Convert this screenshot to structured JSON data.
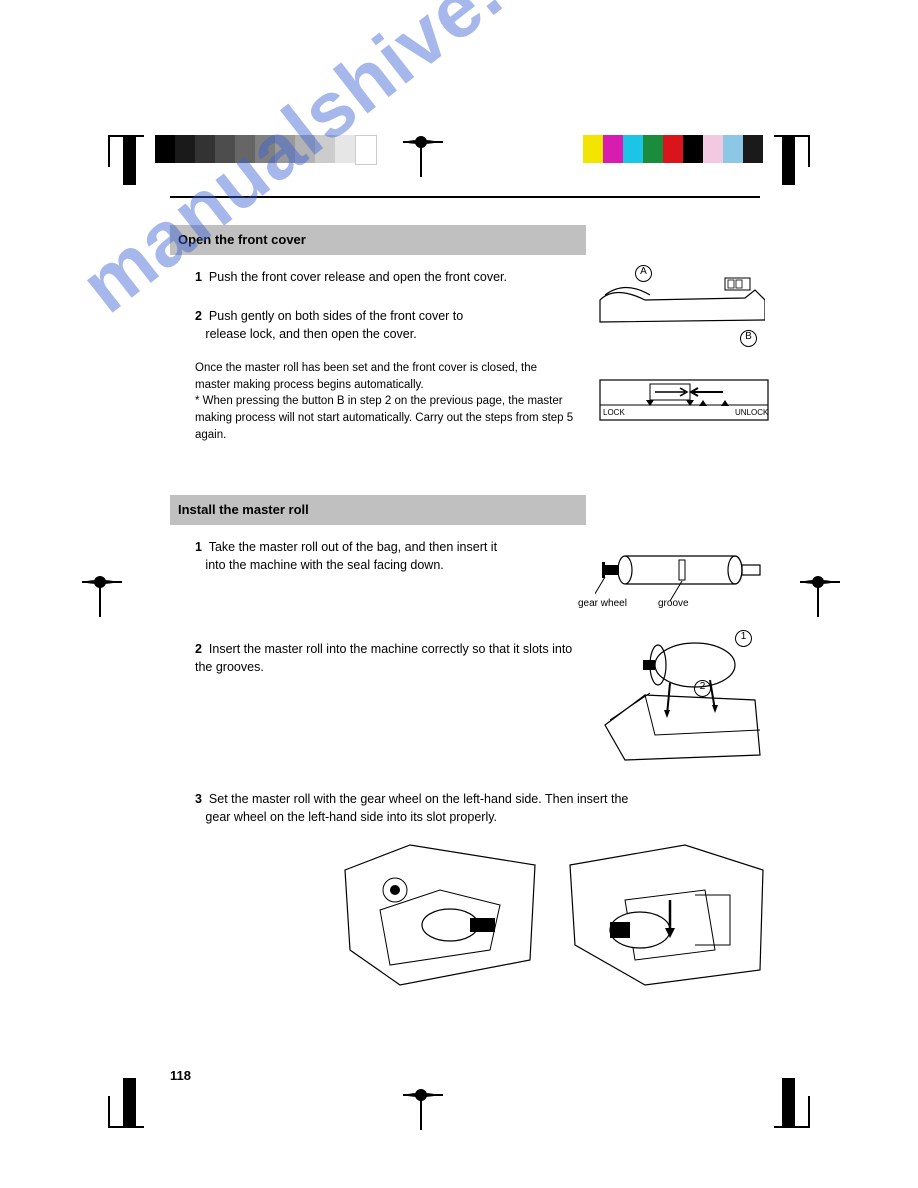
{
  "section1": {
    "title": "Open the front cover"
  },
  "step1": {
    "num": "1",
    "text": "Push the front cover release and open the front cover."
  },
  "step2": {
    "num": "2",
    "lines": [
      "Push gently on both sides of the front cover to",
      "release lock, and then open the cover."
    ],
    "note_lines": [
      "Once the master roll has been set and the front cover is closed, the",
      "master making process begins automatically.",
      "* When pressing the button B in step 2 on the previous page, the master",
      "making process will not start automatically. Carry out the steps from step 5 again."
    ]
  },
  "section2": {
    "title": "Install the master roll"
  },
  "r_step1": {
    "num": "1",
    "lines": [
      "Take the master roll out of the bag, and then insert it",
      "into the machine with the seal facing down."
    ]
  },
  "r_step2": {
    "num": "2",
    "text": "Insert the master roll into the machine correctly so that it slots into the grooves."
  },
  "r_step3": {
    "num": "3",
    "lines": [
      "Set the master roll with the gear wheel on the left-hand side. Then insert the",
      "gear wheel on the left-hand side into its slot properly."
    ]
  },
  "fig_labels": {
    "a": "A",
    "b": "B",
    "groove": "groove",
    "gear": "gear wheel",
    "lock": "LOCK",
    "unlock": "UNLOCK",
    "one": "1",
    "two": "2"
  },
  "graybar_colors": [
    "#000000",
    "#1a1a1a",
    "#333333",
    "#4d4d4d",
    "#666666",
    "#808080",
    "#999999",
    "#b3b3b3",
    "#cccccc",
    "#e6e6e6",
    "#ffffff"
  ],
  "colorbar_colors": [
    "#f2e600",
    "#d91cb0",
    "#1cc4e6",
    "#1a8c3c",
    "#d9141a",
    "#000000",
    "#f2c9e0",
    "#8cc7e6",
    "#1a1a1a"
  ],
  "page_number": "118",
  "watermark_text": "manualshive.com"
}
